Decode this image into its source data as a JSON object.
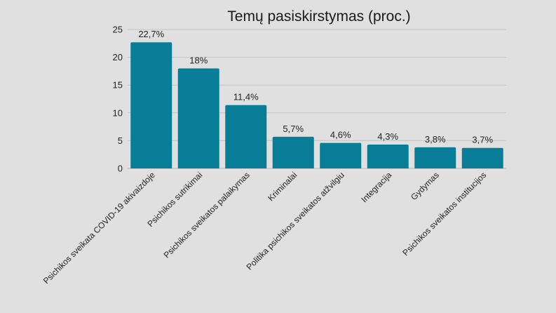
{
  "chart_data": {
    "type": "bar",
    "title": "Temų pasiskirstymas (proc.)",
    "categories": [
      "Psichikos sveikata COVID-19 akivaizdoje",
      "Psichikos sutrikimai",
      "Psichikos sveikatos palaikymas",
      "Kriminalai",
      "Politika psichikos sveikatos atžvilgiu",
      "Integracija",
      "Gydymas",
      "Psichikos sveikatos institucijos"
    ],
    "values": [
      22.7,
      18,
      11.4,
      5.7,
      4.6,
      4.3,
      3.8,
      3.7
    ],
    "data_labels": [
      "22,7%",
      "18%",
      "11,4%",
      "5,7%",
      "4,6%",
      "4,3%",
      "3,8%",
      "3,7%"
    ],
    "yticks": [
      "0",
      "5",
      "10",
      "15",
      "20",
      "25"
    ],
    "ylim": [
      0,
      25
    ],
    "xlabel": "",
    "ylabel": "",
    "grid": true,
    "legend": "none",
    "colors": {
      "bar": "#077d98",
      "background": "#e0e0e0"
    }
  }
}
